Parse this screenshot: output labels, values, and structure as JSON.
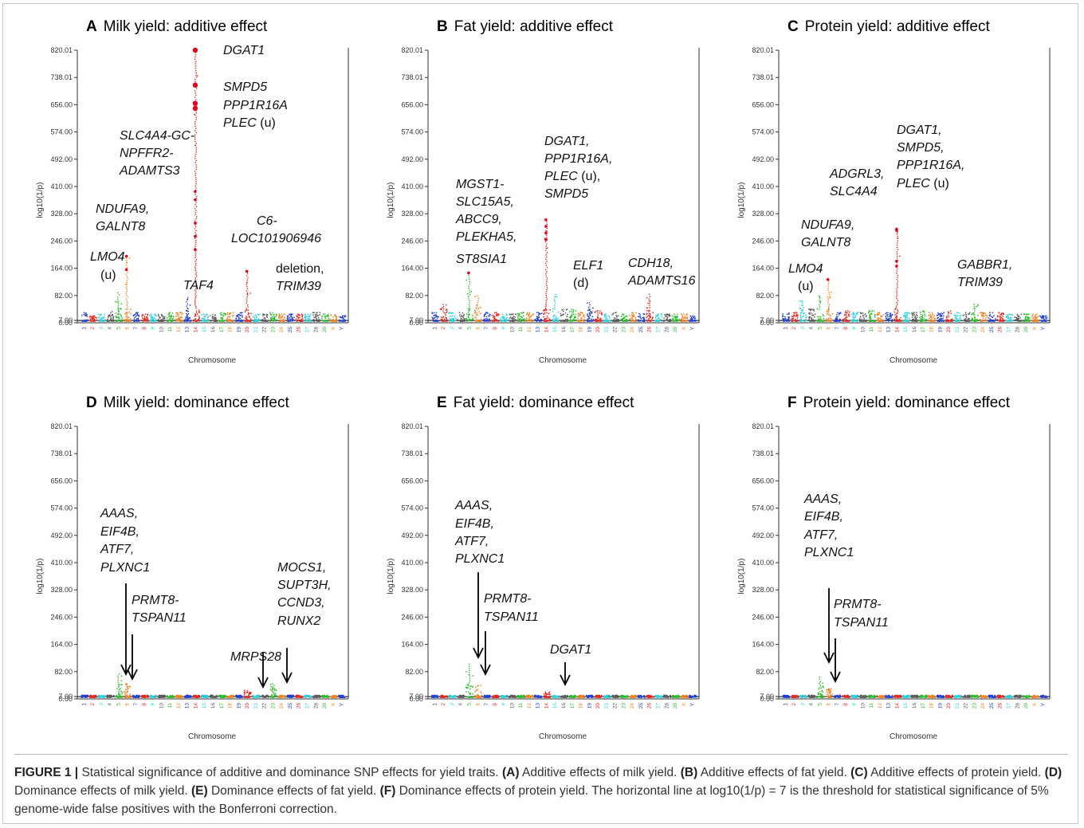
{
  "chart_data": [
    {
      "type": "scatter",
      "panel": "A",
      "title": "Milk yield: additive effect",
      "xlabel": "Chromosome",
      "ylabel": "log10(1/p)",
      "yticks": [
        "0.00",
        "7.00",
        "82.00",
        "164.00",
        "246.00",
        "328.00",
        "410.00",
        "492.00",
        "574.00",
        "656.00",
        "738.01",
        "820.01"
      ],
      "ylim": [
        0,
        820.01
      ],
      "categories": [
        "1",
        "2",
        "3",
        "4",
        "5",
        "6",
        "7",
        "8",
        "9",
        "10",
        "11",
        "12",
        "13",
        "14",
        "15",
        "16",
        "17",
        "18",
        "19",
        "20",
        "21",
        "22",
        "23",
        "24",
        "25",
        "26",
        "27",
        "28",
        "29",
        "X",
        "Y"
      ],
      "threshold": 7,
      "chromosome_peaks": [
        30,
        20,
        25,
        35,
        90,
        200,
        30,
        25,
        25,
        25,
        30,
        30,
        75,
        820,
        25,
        25,
        30,
        30,
        30,
        155,
        25,
        25,
        30,
        25,
        25,
        25,
        25,
        30,
        25,
        25,
        20
      ],
      "hits": [
        {
          "chr": "14",
          "values": [
            820,
            715,
            660,
            645,
            395,
            370,
            300,
            260,
            220
          ]
        },
        {
          "chr": "6",
          "values": [
            200,
            160
          ]
        },
        {
          "chr": "20",
          "values": [
            155
          ]
        }
      ],
      "annotations": [
        {
          "text": "DGAT1"
        },
        {
          "text": "SMPD5"
        },
        {
          "text": "PPP1R16A"
        },
        {
          "text": "PLEC",
          "suffix": " (u)"
        },
        {
          "text": "SLC4A4-GC-"
        },
        {
          "text": "NPFFR2-"
        },
        {
          "text": "ADAMTS3"
        },
        {
          "text": "NDUFA9,"
        },
        {
          "text": "GALNT8"
        },
        {
          "text": "LMO4"
        },
        {
          "text": "(u)",
          "roman": true
        },
        {
          "text": "TAF4"
        },
        {
          "text": "C6-"
        },
        {
          "text": "LOC101906946"
        },
        {
          "text": "deletion,",
          "roman": true
        },
        {
          "text": "TRIM39"
        }
      ]
    },
    {
      "type": "scatter",
      "panel": "B",
      "title": "Fat yield: additive effect",
      "xlabel": "Chromosome",
      "ylabel": "log10(1/p)",
      "yticks": [
        "0.00",
        "7.00",
        "82.00",
        "164.00",
        "246.00",
        "328.00",
        "410.00",
        "492.00",
        "574.00",
        "656.00",
        "738.01",
        "820.01"
      ],
      "ylim": [
        0,
        820.01
      ],
      "categories": [
        "1",
        "2",
        "3",
        "4",
        "5",
        "6",
        "7",
        "8",
        "9",
        "10",
        "11",
        "12",
        "13",
        "14",
        "15",
        "16",
        "17",
        "18",
        "19",
        "20",
        "21",
        "22",
        "23",
        "24",
        "25",
        "26",
        "27",
        "28",
        "29",
        "X",
        "Y"
      ],
      "threshold": 7,
      "chromosome_peaks": [
        30,
        55,
        30,
        30,
        150,
        80,
        30,
        30,
        25,
        25,
        30,
        30,
        30,
        310,
        85,
        40,
        40,
        30,
        60,
        35,
        25,
        30,
        25,
        30,
        30,
        85,
        25,
        25,
        25,
        25,
        20
      ],
      "hits": [
        {
          "chr": "14",
          "values": [
            310,
            290,
            270,
            250
          ]
        },
        {
          "chr": "5",
          "values": [
            150
          ]
        }
      ],
      "annotations": [
        {
          "text": "MGST1-"
        },
        {
          "text": "SLC15A5,"
        },
        {
          "text": "ABCC9,"
        },
        {
          "text": "PLEKHA5,"
        },
        {
          "text": "ST8SIA1"
        },
        {
          "text": "DGAT1,"
        },
        {
          "text": "PPP1R16A,"
        },
        {
          "text": "PLEC",
          "suffix": " (u),"
        },
        {
          "text": "SMPD5"
        },
        {
          "text": "ELF1"
        },
        {
          "text": "(d)",
          "roman": true
        },
        {
          "text": "CDH18,"
        },
        {
          "text": "ADAMTS16"
        }
      ]
    },
    {
      "type": "scatter",
      "panel": "C",
      "title": "Protein yield: additive effect",
      "xlabel": "Chromosome",
      "ylabel": "log10(1/p)",
      "yticks": [
        "0.00",
        "7.00",
        "82.00",
        "164.00",
        "246.00",
        "328.00",
        "410.00",
        "492.00",
        "574.00",
        "656.00",
        "738.01",
        "820.01"
      ],
      "ylim": [
        0,
        820.01
      ],
      "categories": [
        "1",
        "2",
        "3",
        "4",
        "5",
        "6",
        "7",
        "8",
        "9",
        "10",
        "11",
        "12",
        "13",
        "14",
        "15",
        "16",
        "17",
        "18",
        "19",
        "20",
        "21",
        "22",
        "23",
        "24",
        "25",
        "26",
        "27",
        "28",
        "29",
        "X",
        "Y"
      ],
      "threshold": 7,
      "chromosome_peaks": [
        30,
        30,
        65,
        40,
        80,
        130,
        30,
        35,
        30,
        30,
        35,
        30,
        30,
        280,
        30,
        30,
        35,
        30,
        30,
        35,
        30,
        30,
        55,
        30,
        30,
        30,
        25,
        25,
        25,
        25,
        20
      ],
      "hits": [
        {
          "chr": "14",
          "values": [
            282,
            278,
            185,
            170
          ]
        },
        {
          "chr": "6",
          "values": [
            130
          ]
        }
      ],
      "annotations": [
        {
          "text": "DGAT1,"
        },
        {
          "text": "SMPD5,"
        },
        {
          "text": "PPP1R16A,"
        },
        {
          "text": "PLEC",
          "suffix": " (u)"
        },
        {
          "text": "ADGRL3,"
        },
        {
          "text": "SLC4A4"
        },
        {
          "text": "NDUFA9,"
        },
        {
          "text": "GALNT8"
        },
        {
          "text": "LMO4"
        },
        {
          "text": "(u)",
          "roman": true
        },
        {
          "text": "GABBR1,"
        },
        {
          "text": "TRIM39"
        }
      ]
    },
    {
      "type": "scatter",
      "panel": "D",
      "title": "Milk yield: dominance effect",
      "xlabel": "Chromosome",
      "ylabel": "log10(1/p)",
      "yticks": [
        "0.00",
        "7.00",
        "82.00",
        "164.00",
        "246.00",
        "328.00",
        "410.00",
        "492.00",
        "574.00",
        "656.00",
        "738.01",
        "820.01"
      ],
      "ylim": [
        0,
        820.01
      ],
      "categories": [
        "1",
        "2",
        "3",
        "4",
        "5",
        "6",
        "7",
        "8",
        "9",
        "10",
        "11",
        "12",
        "13",
        "14",
        "15",
        "16",
        "17",
        "18",
        "19",
        "20",
        "21",
        "22",
        "23",
        "24",
        "25",
        "26",
        "27",
        "28",
        "29",
        "X",
        "Y"
      ],
      "threshold": 7,
      "chromosome_peaks": [
        10,
        10,
        10,
        10,
        75,
        45,
        10,
        10,
        10,
        10,
        10,
        10,
        10,
        10,
        10,
        10,
        10,
        10,
        10,
        25,
        10,
        10,
        45,
        10,
        10,
        10,
        10,
        10,
        10,
        10,
        10
      ],
      "hits": [],
      "annotations": [
        {
          "text": "AAAS,"
        },
        {
          "text": "EIF4B,"
        },
        {
          "text": "ATF7,"
        },
        {
          "text": "PLXNC1"
        },
        {
          "text": "PRMT8-"
        },
        {
          "text": "TSPAN11"
        },
        {
          "text": "MRPS28"
        },
        {
          "text": "MOCS1,"
        },
        {
          "text": "SUPT3H,"
        },
        {
          "text": "CCND3,"
        },
        {
          "text": "RUNX2"
        }
      ]
    },
    {
      "type": "scatter",
      "panel": "E",
      "title": "Fat yield: dominance effect",
      "xlabel": "Chromosome",
      "ylabel": "log10(1/p)",
      "yticks": [
        "0.00",
        "7.00",
        "82.00",
        "164.00",
        "246.00",
        "328.00",
        "410.00",
        "492.00",
        "574.00",
        "656.00",
        "738.01",
        "820.01"
      ],
      "ylim": [
        0,
        820.01
      ],
      "categories": [
        "1",
        "2",
        "3",
        "4",
        "5",
        "6",
        "7",
        "8",
        "9",
        "10",
        "11",
        "12",
        "13",
        "14",
        "15",
        "16",
        "17",
        "18",
        "19",
        "20",
        "21",
        "22",
        "23",
        "24",
        "25",
        "26",
        "27",
        "28",
        "29",
        "X",
        "Y"
      ],
      "threshold": 7,
      "chromosome_peaks": [
        10,
        10,
        10,
        10,
        105,
        40,
        10,
        10,
        10,
        10,
        10,
        10,
        10,
        20,
        10,
        10,
        10,
        10,
        10,
        10,
        10,
        10,
        10,
        10,
        10,
        10,
        10,
        10,
        10,
        10,
        10
      ],
      "hits": [],
      "annotations": [
        {
          "text": "AAAS,"
        },
        {
          "text": "EIF4B,"
        },
        {
          "text": "ATF7,"
        },
        {
          "text": "PLXNC1"
        },
        {
          "text": "PRMT8-"
        },
        {
          "text": "TSPAN11"
        },
        {
          "text": "DGAT1"
        }
      ]
    },
    {
      "type": "scatter",
      "panel": "F",
      "title": "Protein yield: dominance effect",
      "xlabel": "Chromosome",
      "ylabel": "log10(1/p)",
      "yticks": [
        "0.00",
        "7.00",
        "82.00",
        "164.00",
        "246.00",
        "328.00",
        "410.00",
        "492.00",
        "574.00",
        "656.00",
        "738.01",
        "820.01"
      ],
      "ylim": [
        0,
        820.01
      ],
      "categories": [
        "1",
        "2",
        "3",
        "4",
        "5",
        "6",
        "7",
        "8",
        "9",
        "10",
        "11",
        "12",
        "13",
        "14",
        "15",
        "16",
        "17",
        "18",
        "19",
        "20",
        "21",
        "22",
        "23",
        "24",
        "25",
        "26",
        "27",
        "28",
        "29",
        "X",
        "Y"
      ],
      "threshold": 7,
      "chromosome_peaks": [
        10,
        10,
        10,
        10,
        65,
        30,
        10,
        10,
        10,
        10,
        10,
        10,
        10,
        10,
        10,
        10,
        10,
        10,
        10,
        10,
        10,
        10,
        10,
        10,
        10,
        10,
        10,
        10,
        10,
        10,
        10
      ],
      "hits": [],
      "annotations": [
        {
          "text": "AAAS,"
        },
        {
          "text": "EIF4B,"
        },
        {
          "text": "ATF7,"
        },
        {
          "text": "PLXNC1"
        },
        {
          "text": "PRMT8-"
        },
        {
          "text": "TSPAN11"
        }
      ]
    }
  ],
  "palette": [
    "#1f3fd6",
    "#e8261e",
    "#2fd3df",
    "#5b5b5b",
    "#2bbd2b",
    "#f2801e"
  ],
  "hit_color": "#e8001a",
  "caption": {
    "label": "FIGURE 1 |",
    "text_1": " Statistical significance of additive and dominance SNP effects for yield traits. ",
    "ref_a": "(A)",
    "text_a": " Additive effects of milk yield. ",
    "ref_b": "(B)",
    "text_b": " Additive effects of fat yield. ",
    "ref_c": "(C)",
    "text_c": " Additive effects of protein yield. ",
    "ref_d": "(D)",
    "text_d": " Dominance effects of milk yield. ",
    "ref_e": "(E)",
    "text_e": " Dominance effects of fat yield. ",
    "ref_f": "(F)",
    "text_f": " Dominance effects of protein yield. The horizontal line at log10(1/p) = 7 is the threshold for statistical significance of 5% genome-wide false positives with the Bonferroni correction."
  }
}
